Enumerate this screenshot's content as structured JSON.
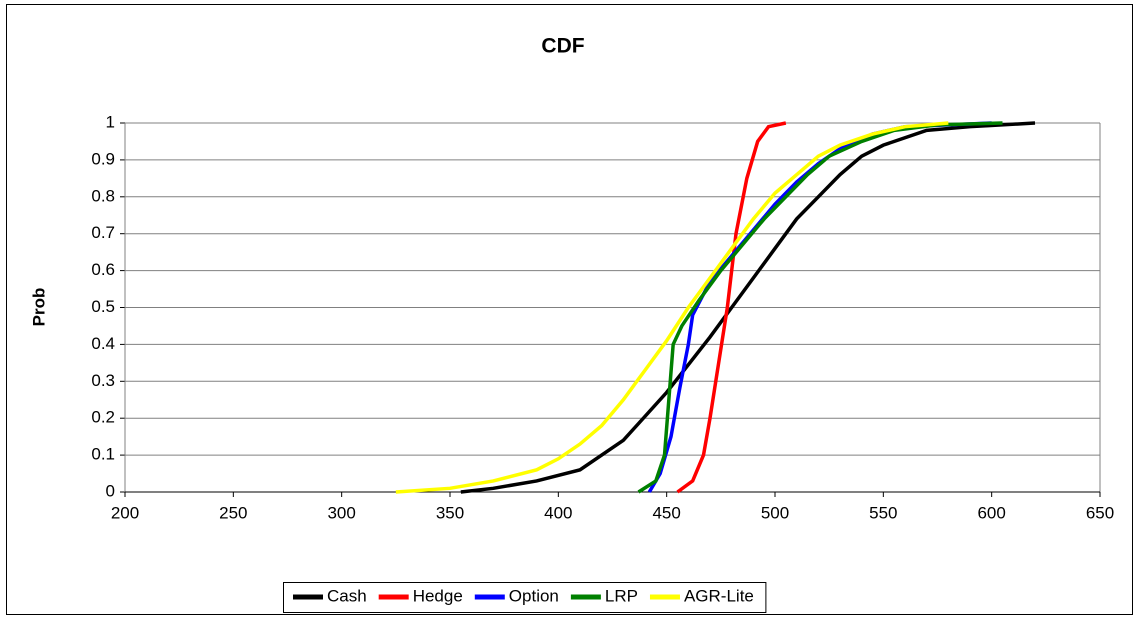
{
  "chart_data": {
    "type": "line",
    "title": "CDF",
    "y_label": "Prob",
    "xlim": [
      200,
      650
    ],
    "xticks": [
      200,
      250,
      300,
      350,
      400,
      450,
      500,
      550,
      600,
      650
    ],
    "ylim": [
      0,
      1
    ],
    "yticks": [
      0,
      0.1,
      0.2,
      0.3,
      0.4,
      0.5,
      0.6,
      0.7,
      0.8,
      0.9,
      1
    ],
    "grid": true,
    "legend": "bottom",
    "series": [
      {
        "name": "Cash",
        "color": "#000000",
        "x": [
          355,
          370,
          390,
          410,
          430,
          450,
          470,
          480,
          490,
          500,
          510,
          520,
          530,
          540,
          550,
          570,
          590,
          620
        ],
        "values": [
          0,
          0.01,
          0.03,
          0.06,
          0.14,
          0.27,
          0.42,
          0.5,
          0.58,
          0.66,
          0.74,
          0.8,
          0.86,
          0.91,
          0.94,
          0.98,
          0.99,
          1
        ]
      },
      {
        "name": "Hedge",
        "color": "#ff0000",
        "x": [
          455,
          462,
          467,
          470,
          474,
          478,
          482,
          487,
          492,
          497,
          505
        ],
        "values": [
          0,
          0.03,
          0.1,
          0.2,
          0.35,
          0.5,
          0.7,
          0.85,
          0.95,
          0.99,
          1
        ]
      },
      {
        "name": "Option",
        "color": "#0000ff",
        "x": [
          442,
          447,
          452,
          456,
          460,
          462,
          470,
          480,
          490,
          500,
          510,
          520,
          530,
          545,
          560,
          600
        ],
        "values": [
          0,
          0.05,
          0.15,
          0.28,
          0.4,
          0.48,
          0.57,
          0.64,
          0.71,
          0.78,
          0.84,
          0.89,
          0.93,
          0.97,
          0.99,
          1
        ]
      },
      {
        "name": "LRP",
        "color": "#008000",
        "x": [
          437,
          445,
          449,
          451,
          453,
          457,
          465,
          475,
          485,
          495,
          505,
          515,
          525,
          540,
          555,
          575,
          605
        ],
        "values": [
          0,
          0.03,
          0.1,
          0.25,
          0.4,
          0.45,
          0.52,
          0.6,
          0.67,
          0.74,
          0.8,
          0.86,
          0.91,
          0.95,
          0.98,
          0.995,
          1
        ]
      },
      {
        "name": "AGR-Lite",
        "color": "#ffff00",
        "x": [
          325,
          350,
          370,
          390,
          400,
          410,
          420,
          430,
          440,
          450,
          460,
          470,
          480,
          490,
          500,
          510,
          520,
          530,
          545,
          560,
          580
        ],
        "values": [
          0,
          0.01,
          0.03,
          0.06,
          0.09,
          0.13,
          0.18,
          0.25,
          0.33,
          0.41,
          0.5,
          0.58,
          0.66,
          0.74,
          0.81,
          0.86,
          0.91,
          0.94,
          0.97,
          0.99,
          1
        ]
      }
    ]
  }
}
